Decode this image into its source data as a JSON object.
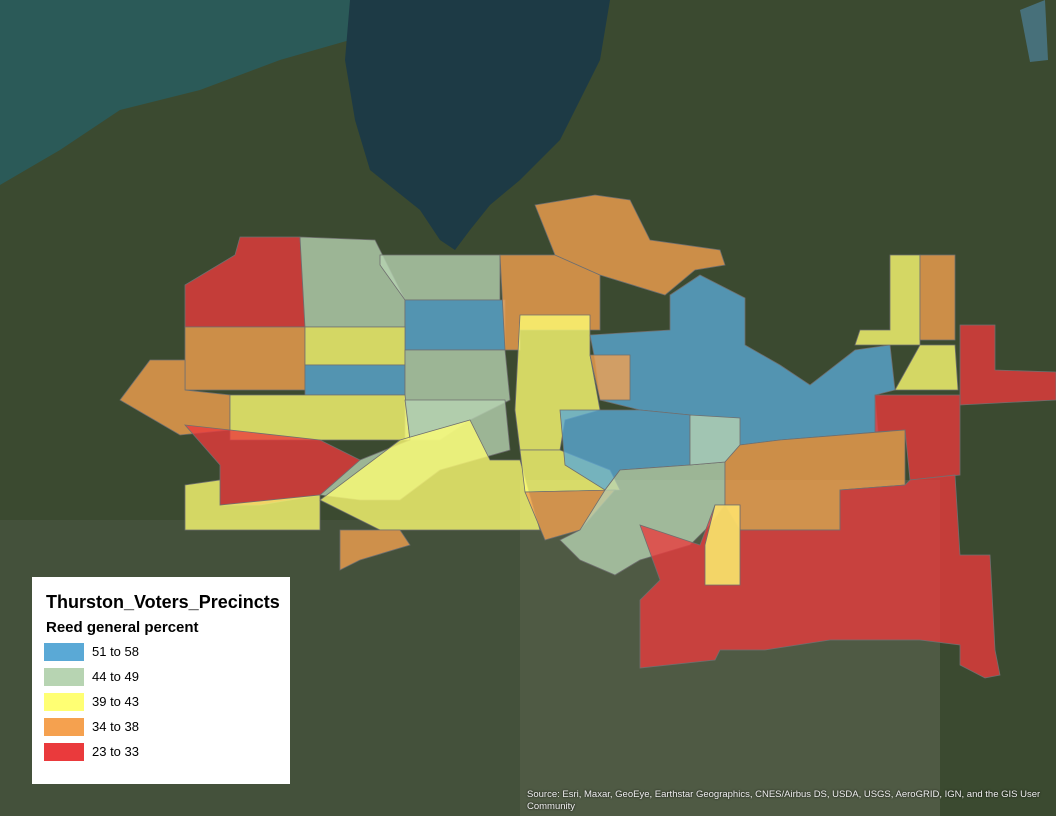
{
  "layer_title": "Thurston_Voters_Precincts",
  "field_title": "Reed general percent",
  "classes": [
    {
      "label": "51 to 58",
      "color": "#5aa9d6"
    },
    {
      "label": "44 to 49",
      "color": "#b7d4b2"
    },
    {
      "label": "39 to 43",
      "color": "#ffff73"
    },
    {
      "label": "34 to 38",
      "color": "#f5a14f"
    },
    {
      "label": "23 to 33",
      "color": "#ea3a3c"
    }
  ],
  "attribution": "Source: Esri, Maxar, GeoEye, Earthstar Geographics, CNES/Airbus DS, USDA, USGS, AeroGRID, IGN, and the GIS User Community"
}
